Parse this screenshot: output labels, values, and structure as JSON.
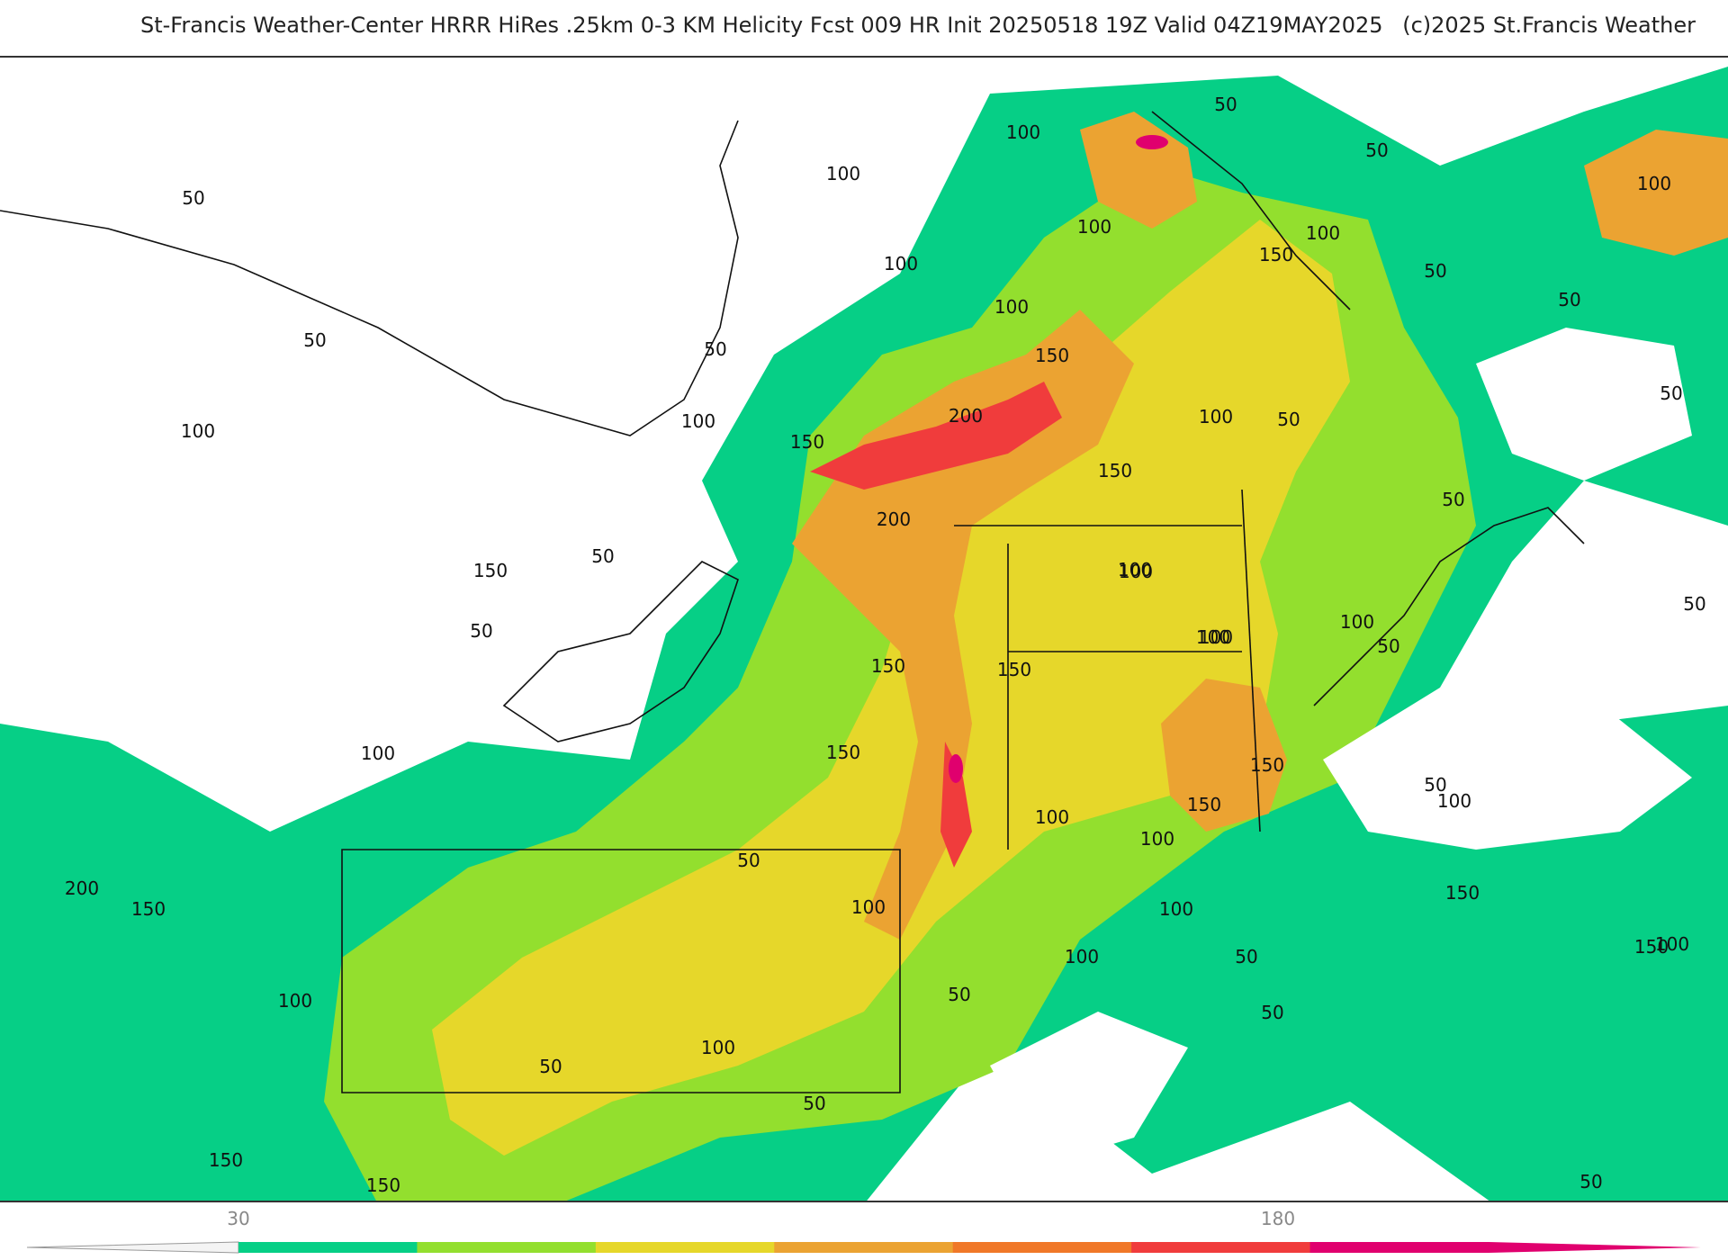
{
  "header": {
    "title": "St-Francis Weather-Center HRRR HiRes .25km 0-3 KM Helicity Fcst 009 HR Init 20250518 19Z  Valid 04Z19MAY2025",
    "copyright": "(c)2025 St.Francis Weather"
  },
  "colorbar": {
    "tick_labels": [
      "30",
      "180"
    ],
    "colors": [
      "#06cf86",
      "#93df2e",
      "#e6d72a",
      "#eba332",
      "#f07828",
      "#f03c3c",
      "#e0006e"
    ]
  },
  "contour_labels": [
    "50",
    "50",
    "50",
    "50",
    "50",
    "50",
    "50",
    "50",
    "50",
    "50",
    "50",
    "50",
    "50",
    "50",
    "50",
    "50",
    "50",
    "50",
    "50",
    "50",
    "50",
    "50",
    "100",
    "100",
    "100",
    "100",
    "100",
    "100",
    "100",
    "100",
    "100",
    "100",
    "100",
    "100",
    "100",
    "100",
    "100",
    "100",
    "100",
    "100",
    "100",
    "100",
    "100",
    "100",
    "100",
    "100",
    "100",
    "150",
    "150",
    "150",
    "150",
    "150",
    "150",
    "150",
    "150",
    "150",
    "150",
    "150",
    "150",
    "150",
    "150",
    "150",
    "200",
    "200",
    "200"
  ]
}
